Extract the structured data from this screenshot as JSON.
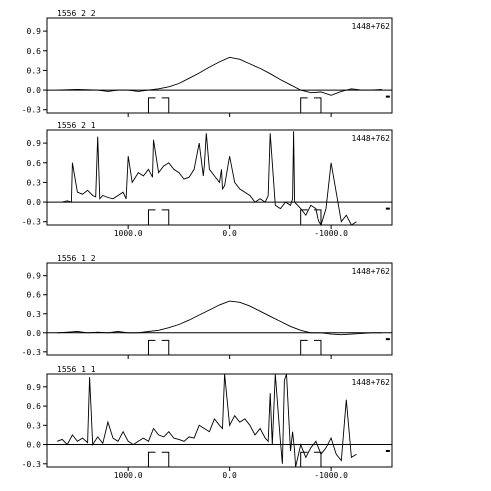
{
  "chart_data": [
    {
      "type": "line",
      "header_left": "1556  2  2",
      "header_right": "1448+762",
      "x_tick_labels": [],
      "x": [
        1700,
        1500,
        1300,
        1200,
        1100,
        1000,
        900,
        800,
        700,
        600,
        500,
        400,
        300,
        200,
        100,
        0,
        -100,
        -200,
        -300,
        -400,
        -500,
        -600,
        -700,
        -800,
        -900,
        -1000,
        -1100,
        -1200,
        -1300,
        -1400,
        -1500
      ],
      "y": [
        0.0,
        0.01,
        0.0,
        -0.02,
        0.0,
        0.0,
        -0.02,
        0.0,
        0.02,
        0.05,
        0.1,
        0.18,
        0.26,
        0.35,
        0.43,
        0.5,
        0.47,
        0.4,
        0.33,
        0.25,
        0.16,
        0.08,
        0.0,
        -0.04,
        -0.03,
        -0.08,
        -0.02,
        0.02,
        0.0,
        0.0,
        0.01
      ],
      "xlim": [
        1800,
        -1600
      ],
      "ylim": [
        -0.35,
        1.1
      ],
      "y_ticks": [
        -0.3,
        0.0,
        0.3,
        0.6,
        0.9
      ],
      "y_tick_labels": [
        "-0.3",
        "0.0",
        "0.3",
        "0.6",
        "0.9"
      ],
      "x_ticks": [
        1000,
        0,
        -1000
      ]
    },
    {
      "type": "line",
      "header_left": "1556  2  1",
      "header_right": "1448+762",
      "x_tick_labels": [
        "1000.0",
        "0.0",
        "-1000.0"
      ],
      "x": [
        1650,
        1600,
        1560,
        1550,
        1500,
        1450,
        1400,
        1350,
        1320,
        1300,
        1280,
        1250,
        1200,
        1150,
        1100,
        1050,
        1020,
        1000,
        960,
        940,
        900,
        850,
        800,
        760,
        750,
        700,
        650,
        600,
        550,
        500,
        450,
        400,
        350,
        300,
        260,
        250,
        230,
        200,
        150,
        100,
        80,
        70,
        50,
        0,
        -50,
        -100,
        -150,
        -200,
        -250,
        -300,
        -350,
        -380,
        -400,
        -450,
        -500,
        -550,
        -600,
        -620,
        -630,
        -640,
        -700,
        -750,
        -800,
        -850,
        -870,
        -880,
        -900,
        -950,
        -1000,
        -1100,
        -1150,
        -1200,
        -1250
      ],
      "y": [
        0.0,
        0.02,
        0.0,
        0.6,
        0.15,
        0.12,
        0.18,
        0.1,
        0.08,
        1.0,
        0.05,
        0.1,
        0.07,
        0.05,
        0.1,
        0.15,
        0.05,
        0.7,
        0.3,
        0.35,
        0.45,
        0.4,
        0.5,
        0.38,
        0.95,
        0.45,
        0.55,
        0.6,
        0.5,
        0.45,
        0.35,
        0.38,
        0.5,
        0.9,
        0.4,
        0.55,
        1.05,
        0.5,
        0.4,
        0.3,
        0.5,
        0.2,
        0.25,
        0.7,
        0.3,
        0.2,
        0.15,
        0.1,
        0.0,
        0.05,
        0.0,
        0.1,
        1.05,
        -0.05,
        -0.1,
        0.0,
        -0.05,
        0.05,
        1.08,
        0.0,
        -0.1,
        -0.2,
        -0.05,
        -0.1,
        -0.25,
        -0.3,
        -0.35,
        -0.1,
        0.6,
        -0.3,
        -0.2,
        -0.35,
        -0.3
      ],
      "xlim": [
        1800,
        -1600
      ],
      "ylim": [
        -0.35,
        1.1
      ],
      "y_ticks": [
        -0.3,
        0.0,
        0.3,
        0.6,
        0.9
      ],
      "y_tick_labels": [
        "-0.3",
        "0.0",
        "0.3",
        "0.6",
        "0.9"
      ],
      "x_ticks": [
        1000,
        0,
        -1000
      ]
    },
    {
      "type": "line",
      "header_left": "1556  1  2",
      "header_right": "1448+762",
      "x_tick_labels": [],
      "x": [
        1700,
        1600,
        1500,
        1400,
        1300,
        1200,
        1100,
        1000,
        900,
        800,
        700,
        600,
        500,
        400,
        300,
        200,
        100,
        0,
        -100,
        -200,
        -300,
        -400,
        -500,
        -600,
        -700,
        -800,
        -900,
        -1000,
        -1100,
        -1200,
        -1300,
        -1400,
        -1500
      ],
      "y": [
        0.0,
        0.01,
        0.02,
        0.0,
        0.01,
        0.0,
        0.02,
        0.0,
        0.0,
        0.02,
        0.04,
        0.08,
        0.13,
        0.2,
        0.28,
        0.36,
        0.44,
        0.5,
        0.48,
        0.42,
        0.34,
        0.26,
        0.18,
        0.1,
        0.04,
        0.0,
        0.0,
        -0.02,
        -0.03,
        -0.02,
        -0.01,
        0.0,
        0.0
      ],
      "xlim": [
        1800,
        -1600
      ],
      "ylim": [
        -0.35,
        1.1
      ],
      "y_ticks": [
        -0.3,
        0.0,
        0.3,
        0.6,
        0.9
      ],
      "y_tick_labels": [
        "-0.3",
        "0.0",
        "0.3",
        "0.6",
        "0.9"
      ],
      "x_ticks": [
        1000,
        0,
        -1000
      ]
    },
    {
      "type": "line",
      "header_left": "1556  1  1",
      "header_right": "1448+762",
      "x_tick_labels": [
        "1000.0",
        "0.0",
        "-1000.0"
      ],
      "x": [
        1700,
        1650,
        1600,
        1550,
        1500,
        1450,
        1400,
        1380,
        1350,
        1300,
        1250,
        1200,
        1150,
        1100,
        1050,
        1000,
        950,
        900,
        850,
        800,
        750,
        700,
        650,
        600,
        550,
        500,
        450,
        400,
        350,
        300,
        250,
        200,
        150,
        100,
        70,
        50,
        0,
        -50,
        -100,
        -150,
        -200,
        -250,
        -300,
        -350,
        -380,
        -400,
        -420,
        -450,
        -500,
        -520,
        -540,
        -560,
        -600,
        -620,
        -640,
        -650,
        -700,
        -750,
        -800,
        -850,
        -900,
        -950,
        -1000,
        -1050,
        -1100,
        -1150,
        -1200,
        -1250
      ],
      "y": [
        0.05,
        0.08,
        0.0,
        0.15,
        0.05,
        0.1,
        0.03,
        1.05,
        0.0,
        0.12,
        0.02,
        0.35,
        0.1,
        0.05,
        0.2,
        0.05,
        0.0,
        0.05,
        0.1,
        0.05,
        0.25,
        0.15,
        0.12,
        0.2,
        0.1,
        0.08,
        0.05,
        0.12,
        0.1,
        0.3,
        0.25,
        0.2,
        0.4,
        0.3,
        0.25,
        1.1,
        0.3,
        0.45,
        0.35,
        0.4,
        0.3,
        0.15,
        0.25,
        0.1,
        0.05,
        0.8,
        0.0,
        1.1,
        0.05,
        -0.3,
        1.0,
        1.1,
        -0.1,
        0.2,
        -0.1,
        -0.35,
        0.0,
        -0.2,
        -0.05,
        0.05,
        -0.15,
        -0.05,
        0.1,
        -0.15,
        -0.25,
        0.7,
        -0.2,
        -0.15
      ],
      "xlim": [
        1800,
        -1600
      ],
      "ylim": [
        -0.35,
        1.1
      ],
      "y_ticks": [
        -0.3,
        0.0,
        0.3,
        0.6,
        0.9
      ],
      "y_tick_labels": [
        "-0.3",
        "0.0",
        "0.3",
        "0.6",
        "0.9"
      ],
      "x_ticks": [
        1000,
        0,
        -1000
      ]
    }
  ]
}
